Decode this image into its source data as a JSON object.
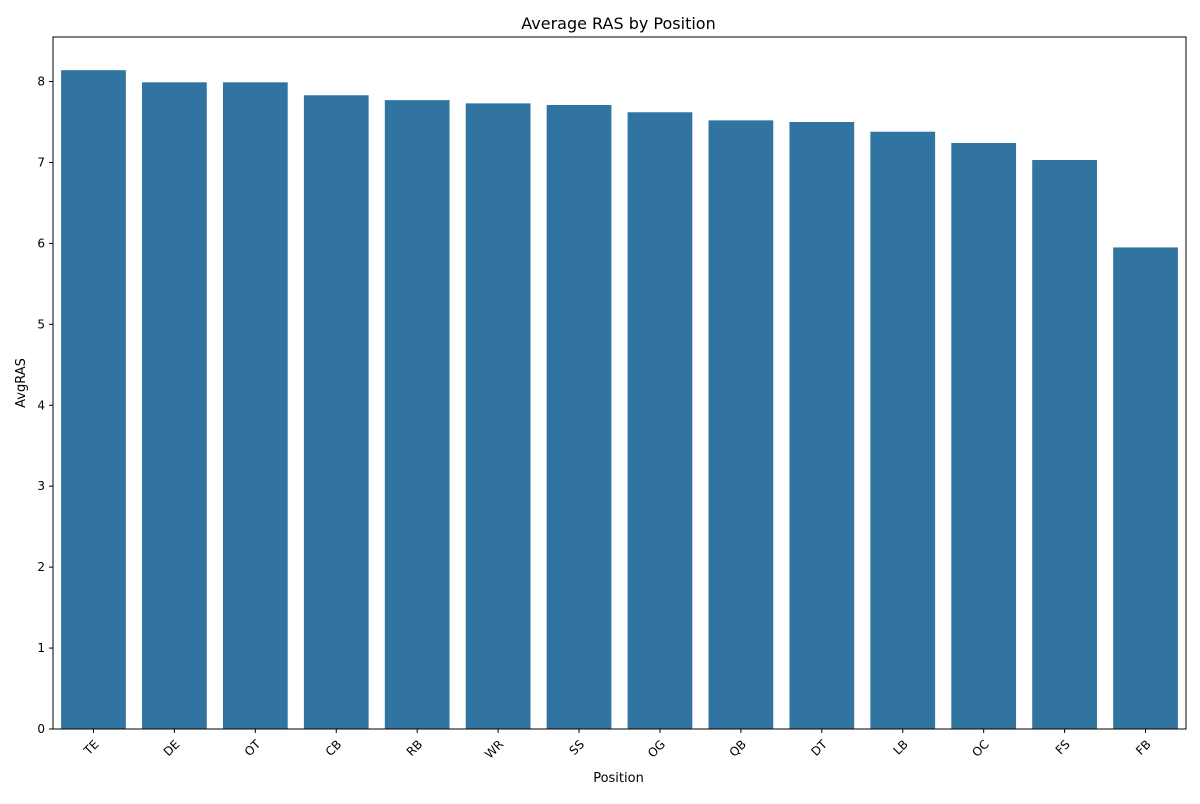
{
  "chart_data": {
    "type": "bar",
    "title": "Average RAS by Position",
    "xlabel": "Position",
    "ylabel": "AvgRAS",
    "categories": [
      "TE",
      "DE",
      "OT",
      "CB",
      "RB",
      "WR",
      "SS",
      "OG",
      "QB",
      "DT",
      "LB",
      "OC",
      "FS",
      "FB"
    ],
    "values": [
      8.14,
      7.99,
      7.99,
      7.83,
      7.77,
      7.73,
      7.71,
      7.62,
      7.52,
      7.5,
      7.38,
      7.24,
      7.03,
      5.95
    ],
    "ylim": [
      0,
      8.55
    ],
    "yticks": [
      0,
      1,
      2,
      3,
      4,
      5,
      6,
      7,
      8
    ],
    "xtick_rotation_deg": 45,
    "bar_color": "#3274a1",
    "grid": false,
    "legend": "none"
  }
}
